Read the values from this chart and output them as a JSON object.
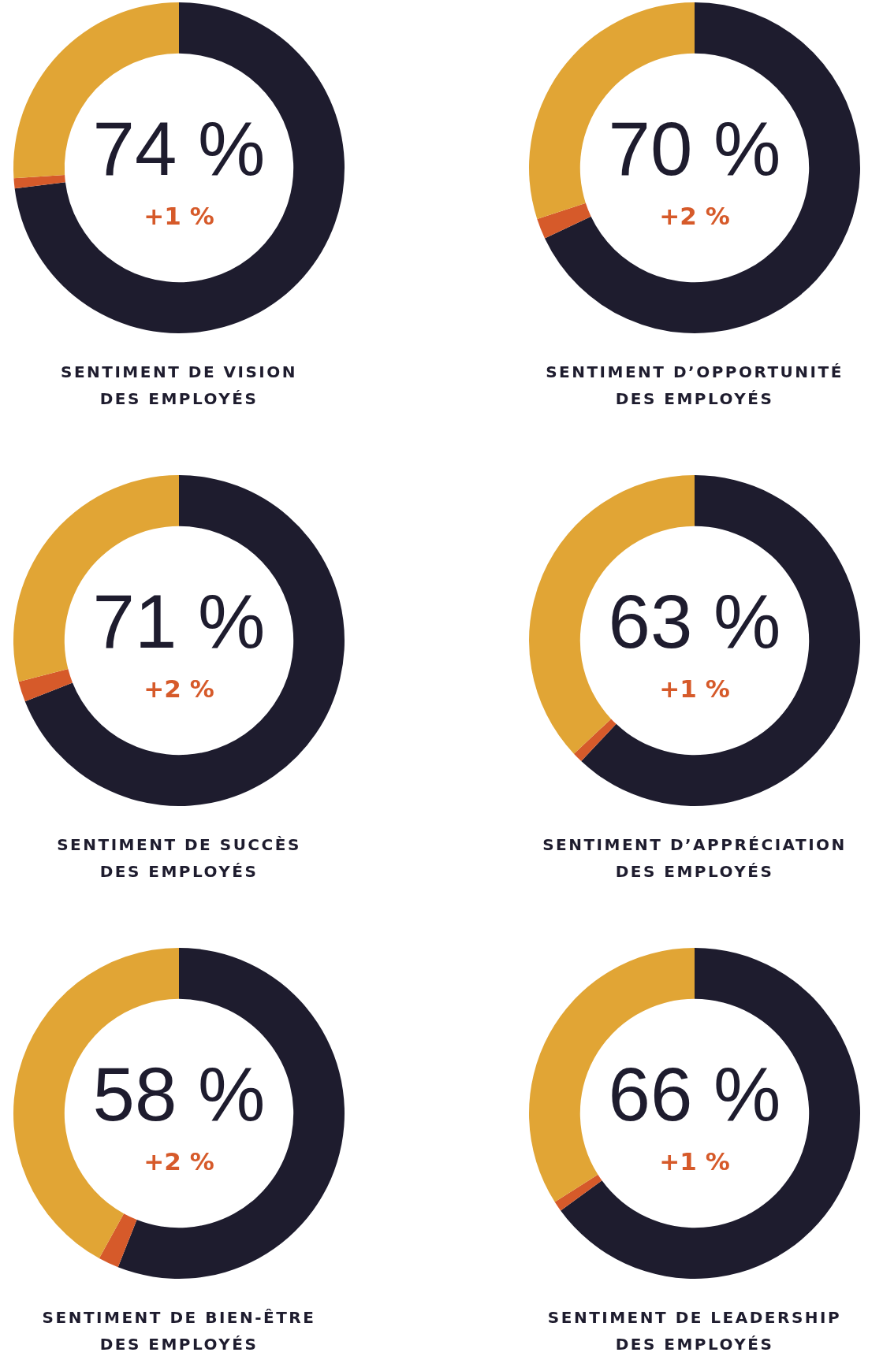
{
  "chart_data": [
    {
      "type": "donut",
      "title": "SENTIMENT DE VISION\nDES EMPLOYÉS",
      "annotations": [
        "74 %",
        "+1 %"
      ],
      "categories": [
        null,
        null,
        null
      ],
      "values": [
        73,
        1,
        26
      ],
      "colors": [
        "#1e1c2e",
        "#d65a2a",
        "#e1a535"
      ]
    },
    {
      "type": "donut",
      "title": "SENTIMENT D’OPPORTUNITÉ\nDES EMPLOYÉS",
      "annotations": [
        "70 %",
        "+2 %"
      ],
      "categories": [
        null,
        null,
        null
      ],
      "values": [
        68,
        2,
        30
      ],
      "colors": [
        "#1e1c2e",
        "#d65a2a",
        "#e1a535"
      ]
    },
    {
      "type": "donut",
      "title": "SENTIMENT DE SUCCÈS\nDES EMPLOYÉS",
      "annotations": [
        "71 %",
        "+2 %"
      ],
      "categories": [
        null,
        null,
        null
      ],
      "values": [
        69,
        2,
        29
      ],
      "colors": [
        "#1e1c2e",
        "#d65a2a",
        "#e1a535"
      ]
    },
    {
      "type": "donut",
      "title": "SENTIMENT D’APPRÉCIATION\nDES EMPLOYÉS",
      "annotations": [
        "63 %",
        "+1 %"
      ],
      "categories": [
        null,
        null,
        null
      ],
      "values": [
        62,
        1,
        37
      ],
      "colors": [
        "#1e1c2e",
        "#d65a2a",
        "#e1a535"
      ]
    },
    {
      "type": "donut",
      "title": "SENTIMENT DE BIEN-ÊTRE\nDES EMPLOYÉS",
      "annotations": [
        "58 %",
        "+2 %"
      ],
      "categories": [
        null,
        null,
        null
      ],
      "values": [
        56,
        2,
        42
      ],
      "colors": [
        "#1e1c2e",
        "#d65a2a",
        "#e1a535"
      ]
    },
    {
      "type": "donut",
      "title": "SENTIMENT DE LEADERSHIP\nDES EMPLOYÉS",
      "annotations": [
        "66 %",
        "+1 %"
      ],
      "categories": [
        null,
        null,
        null
      ],
      "values": [
        65,
        1,
        34
      ],
      "colors": [
        "#1e1c2e",
        "#d65a2a",
        "#e1a535"
      ]
    }
  ]
}
